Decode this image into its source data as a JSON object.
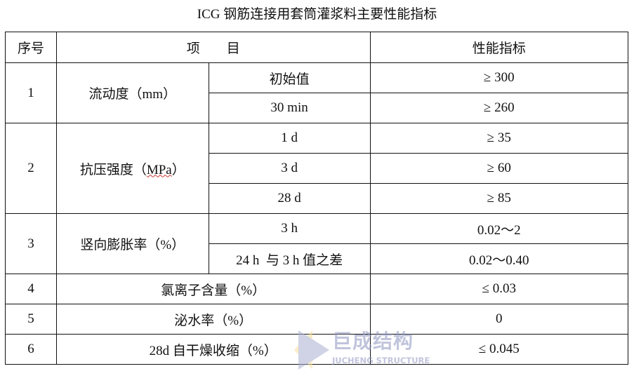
{
  "title": "ICG 钢筋连接用套筒灌浆料主要性能指标",
  "headers": {
    "no": "序号",
    "item": "项　　目",
    "spec": "性能指标"
  },
  "rows": {
    "r1": {
      "no": "1",
      "item": "流动度（mm）",
      "sub": [
        {
          "name": "初始值",
          "spec": "≥ 300"
        },
        {
          "name": "30 min",
          "spec": "≥ 260"
        }
      ]
    },
    "r2": {
      "no": "2",
      "item_prefix": "抗压强度（",
      "item_unit": "MPa",
      "item_suffix": "）",
      "sub": [
        {
          "name": "1 d",
          "spec": "≥ 35"
        },
        {
          "name": "3 d",
          "spec": "≥ 60"
        },
        {
          "name": "28 d",
          "spec": "≥ 85"
        }
      ]
    },
    "r3": {
      "no": "3",
      "item": "竖向膨胀率（%）",
      "sub": [
        {
          "name": "3 h",
          "spec": "0.02～2"
        },
        {
          "name": "24 h  与 3 h 值之差",
          "spec": "0.02～0.40"
        }
      ]
    },
    "r4": {
      "no": "4",
      "item": "氯离子含量（%）",
      "spec": "≤ 0.03"
    },
    "r5": {
      "no": "5",
      "item": "泌水率（%）",
      "spec": "0"
    },
    "r6": {
      "no": "6",
      "item": "28d 自干燥收缩（%）",
      "spec": "≤ 0.045"
    }
  },
  "watermark": {
    "cn": "巨成结构",
    "en": "JUCHENG STRUCTURE"
  }
}
